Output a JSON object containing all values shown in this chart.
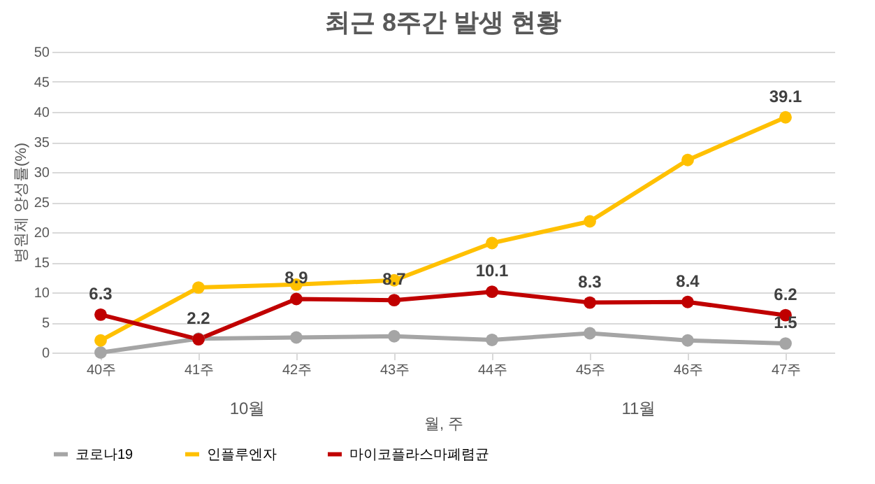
{
  "chart_data": {
    "type": "line",
    "title": "최근 8주간 발생 현황",
    "xlabel": "월, 주",
    "ylabel": "병원체 양성률(%)",
    "categories": [
      "40주",
      "41주",
      "42주",
      "43주",
      "44주",
      "45주",
      "46주",
      "47주"
    ],
    "series": [
      {
        "name": "코로나19",
        "color": "#a5a5a5",
        "values": [
          0,
          2.3,
          2.5,
          2.7,
          2.1,
          3.2,
          2,
          1.5
        ],
        "value_labels": [
          null,
          null,
          null,
          null,
          null,
          null,
          null,
          "1.5"
        ]
      },
      {
        "name": "인플루엔자",
        "color": "#ffc000",
        "values": [
          2,
          10.8,
          11.3,
          12,
          18.2,
          21.8,
          32,
          39.1
        ],
        "value_labels": [
          null,
          null,
          null,
          null,
          null,
          null,
          null,
          "39.1"
        ]
      },
      {
        "name": "마이코플라스마폐렴균",
        "color": "#c00000",
        "values": [
          6.3,
          2.2,
          8.9,
          8.7,
          10.1,
          8.3,
          8.4,
          6.2
        ],
        "value_labels": [
          "6.3",
          "2.2",
          "8.9",
          "8.7",
          "10.1",
          "8.3",
          "8.4",
          "6.2"
        ]
      }
    ],
    "annotations": [
      "10월",
      "11월"
    ],
    "ylim": [
      0,
      50
    ],
    "yticks": [
      0,
      5,
      10,
      15,
      20,
      25,
      30,
      35,
      40,
      45,
      50
    ],
    "grid": "y",
    "legend": "bottom",
    "marker": "circle",
    "line_style": "solid"
  }
}
